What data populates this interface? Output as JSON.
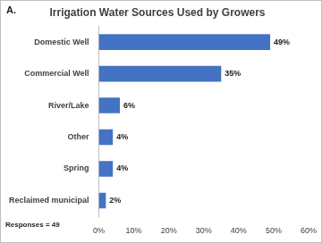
{
  "chart_data": {
    "type": "bar",
    "orientation": "horizontal",
    "title": "Irrigation Water Sources Used by Growers",
    "annotations": [
      "A.",
      "Responses = 49"
    ],
    "categories": [
      "Domestic Well",
      "Commercial Well",
      "River/Lake",
      "Other",
      "Spring",
      "Reclaimed municipal"
    ],
    "values": [
      49,
      35,
      6,
      4,
      4,
      2
    ],
    "value_labels": [
      "49%",
      "35%",
      "6%",
      "4%",
      "4%",
      "2%"
    ],
    "data_labels": true,
    "color": "#4472c4",
    "xlim": [
      0,
      60
    ],
    "xticks": [
      {
        "value": 0,
        "label": "0%"
      },
      {
        "value": 10,
        "label": "10%"
      },
      {
        "value": 20,
        "label": "20%"
      },
      {
        "value": 30,
        "label": "30%"
      },
      {
        "value": 40,
        "label": "40%"
      },
      {
        "value": 50,
        "label": "50%"
      },
      {
        "value": 60,
        "label": "60%"
      }
    ],
    "grid": false
  }
}
